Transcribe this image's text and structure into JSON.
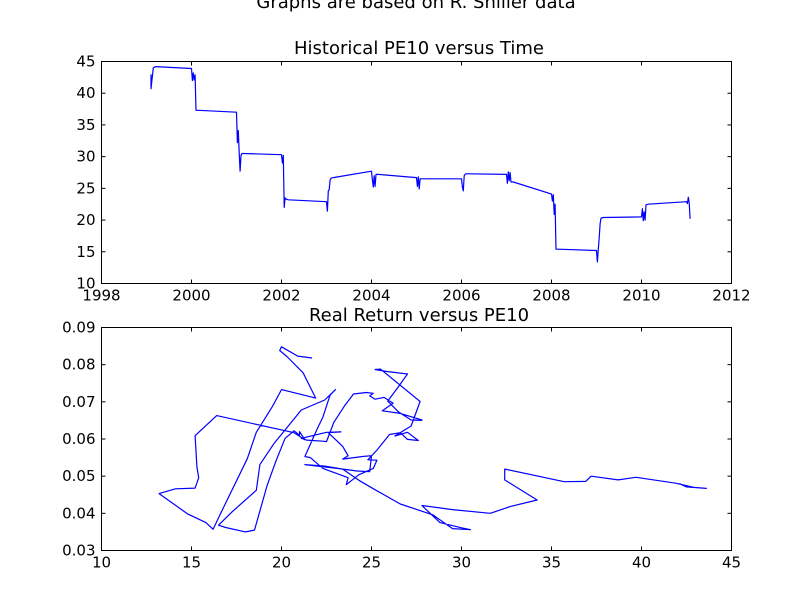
{
  "figure": {
    "suptitle": "Graphs are based on R. Shiller data",
    "line_color": "#0000ff"
  },
  "chart_data": [
    {
      "type": "line",
      "title": "Historical PE10 versus Time",
      "xlabel": "",
      "ylabel": "",
      "xlim": [
        1998,
        2012
      ],
      "ylim": [
        10,
        45
      ],
      "xticks": [
        1998,
        2000,
        2002,
        2004,
        2006,
        2008,
        2010,
        2012
      ],
      "yticks": [
        10,
        15,
        20,
        25,
        30,
        35,
        40,
        45
      ],
      "grid": false,
      "series": [
        {
          "x": [
            1999.1,
            1999.1,
            1999.15,
            1999.2,
            2000.0,
            2000.02,
            2000.04,
            2000.06,
            2000.08,
            2000.1,
            2000.12,
            2000.15,
            2001.0,
            2001.02,
            2001.04,
            2001.06,
            2001.08,
            2001.1,
            2001.12,
            2001.15,
            2002.0,
            2002.02,
            2002.04,
            2002.06,
            2002.08,
            2002.1,
            2002.15,
            2003.0,
            2003.02,
            2003.04,
            2003.06,
            2003.08,
            2003.1,
            2003.15,
            2004.0,
            2004.02,
            2004.04,
            2004.06,
            2004.08,
            2004.1,
            2004.15,
            2005.0,
            2005.02,
            2005.04,
            2005.06,
            2005.08,
            2005.1,
            2005.15,
            2006.0,
            2006.02,
            2006.04,
            2006.06,
            2006.08,
            2006.1,
            2006.15,
            2007.0,
            2007.02,
            2007.04,
            2007.06,
            2007.08,
            2007.1,
            2007.15,
            2008.0,
            2008.02,
            2008.04,
            2008.06,
            2008.08,
            2008.1,
            2008.15,
            2009.0,
            2009.02,
            2009.04,
            2009.06,
            2009.08,
            2009.1,
            2009.15,
            2010.0,
            2010.02,
            2010.04,
            2010.06,
            2010.08,
            2010.1,
            2010.15,
            2011.0,
            2011.02,
            2011.04,
            2011.06,
            2011.08
          ],
          "y": [
            43.0,
            40.7,
            44.0,
            44.2,
            43.9,
            42.0,
            43.2,
            42.1,
            42.9,
            37.3,
            37.3,
            37.3,
            37.0,
            32.2,
            34.1,
            30.6,
            27.7,
            30.2,
            30.5,
            30.5,
            30.3,
            29.0,
            30.2,
            22.0,
            23.5,
            23.3,
            23.2,
            22.9,
            21.4,
            24.6,
            24.8,
            26.3,
            26.6,
            26.7,
            27.7,
            26.3,
            25.2,
            27.0,
            25.3,
            27.2,
            27.2,
            26.7,
            25.3,
            26.8,
            24.9,
            26.5,
            26.5,
            26.5,
            26.5,
            25.2,
            24.6,
            27.0,
            27.2,
            27.3,
            27.3,
            27.2,
            25.8,
            27.6,
            26.2,
            27.5,
            26.0,
            26.0,
            24.1,
            23.0,
            24.0,
            20.9,
            22.5,
            15.4,
            15.4,
            15.2,
            13.4,
            15.4,
            17.2,
            19.4,
            20.3,
            20.4,
            20.5,
            21.8,
            19.9,
            21.3,
            20.0,
            22.4,
            22.5,
            22.9,
            22.6,
            23.6,
            22.7,
            20.2
          ]
        }
      ]
    },
    {
      "type": "line",
      "title": "Real Return versus PE10",
      "xlabel": "",
      "ylabel": "",
      "xlim": [
        10,
        45
      ],
      "ylim": [
        0.03,
        0.09
      ],
      "xticks": [
        10,
        15,
        20,
        25,
        30,
        35,
        40,
        45
      ],
      "yticks": [
        "0.03",
        "0.04",
        "0.05",
        "0.06",
        "0.07",
        "0.08",
        "0.09"
      ],
      "grid": false,
      "series": [
        {
          "x": [
            21.7,
            20.9,
            20.0,
            19.9,
            20.3,
            21.2,
            21.9,
            20.0,
            19.5,
            19.0,
            18.6,
            18.1,
            16.6,
            16.2,
            15.8,
            14.8,
            13.2,
            14.1,
            15.2,
            15.4,
            15.3,
            15.2,
            16.4,
            20.7,
            21.3,
            21.0,
            21.0,
            21.0,
            20.7,
            20.2,
            19.7,
            19.2,
            18.5,
            18.0,
            16.9,
            16.5,
            17.3,
            18.6,
            18.8,
            19.6,
            20.7,
            21.1,
            22.4,
            23.0,
            22.7,
            22.3,
            22.0,
            21.3,
            21.6,
            22.3,
            23.7,
            23.6,
            24.3,
            25.1,
            25.3,
            24.8,
            25.3,
            26.0,
            26.6,
            27.0,
            27.6,
            27.0,
            26.3,
            27.2,
            27.7,
            25.5,
            25.2,
            25.8,
            27.0,
            26.5,
            25.9,
            26.5,
            27.2,
            27.8,
            27.8,
            26.6,
            25.6,
            26.2,
            25.7,
            25.2,
            24.9,
            25.1,
            24.7,
            24.0,
            23.5,
            22.9,
            22.5,
            22.3,
            21.4,
            21.1,
            22.5,
            23.3,
            22.6,
            23.4,
            23.7,
            23.4,
            24.5,
            25.0,
            24.9,
            24.2,
            23.1,
            21.3,
            22.4,
            23.4,
            24.3,
            25.0,
            26.6,
            28.4,
            29.5,
            30.5,
            30.0,
            28.8,
            27.8,
            29.5,
            31.6,
            32.7,
            34.2,
            32.4,
            32.4,
            35.7,
            36.9,
            37.2,
            38.7,
            39.7,
            41.9,
            42.9,
            43.6,
            42.5,
            42.1
          ],
          "y": [
            0.0818,
            0.0823,
            0.0848,
            0.0838,
            0.0822,
            0.0778,
            0.071,
            0.0733,
            0.0688,
            0.0649,
            0.0618,
            0.0547,
            0.0398,
            0.0357,
            0.0375,
            0.0398,
            0.0453,
            0.0466,
            0.0468,
            0.0496,
            0.0525,
            0.0609,
            0.0663,
            0.0617,
            0.0598,
            0.062,
            0.0617,
            0.061,
            0.0622,
            0.0602,
            0.0542,
            0.0475,
            0.0355,
            0.035,
            0.0362,
            0.0368,
            0.0406,
            0.0462,
            0.0531,
            0.0589,
            0.0654,
            0.0678,
            0.0705,
            0.0733,
            0.0718,
            0.0659,
            0.0629,
            0.0553,
            0.055,
            0.0521,
            0.0496,
            0.0477,
            0.0504,
            0.0521,
            0.0543,
            0.0544,
            0.057,
            0.0612,
            0.0617,
            0.0599,
            0.0596,
            0.0618,
            0.0608,
            0.0635,
            0.0701,
            0.0788,
            0.0787,
            0.0782,
            0.0775,
            0.0741,
            0.0702,
            0.0673,
            0.0651,
            0.065,
            0.0651,
            0.0669,
            0.0676,
            0.0696,
            0.0712,
            0.0707,
            0.0716,
            0.0723,
            0.0725,
            0.0721,
            0.0689,
            0.0644,
            0.0593,
            0.0594,
            0.0597,
            0.0602,
            0.0618,
            0.0619,
            0.0617,
            0.058,
            0.0555,
            0.0546,
            0.0553,
            0.0555,
            0.0512,
            0.0514,
            0.0521,
            0.0531,
            0.0527,
            0.0519,
            0.0489,
            0.0469,
            0.0425,
            0.0396,
            0.0359,
            0.0356,
            0.0361,
            0.0375,
            0.0421,
            0.041,
            0.04,
            0.0418,
            0.0436,
            0.049,
            0.0519,
            0.0485,
            0.0486,
            0.05,
            0.049,
            0.0497,
            0.0481,
            0.047,
            0.0467,
            0.0471,
            0.048
          ]
        }
      ]
    }
  ]
}
